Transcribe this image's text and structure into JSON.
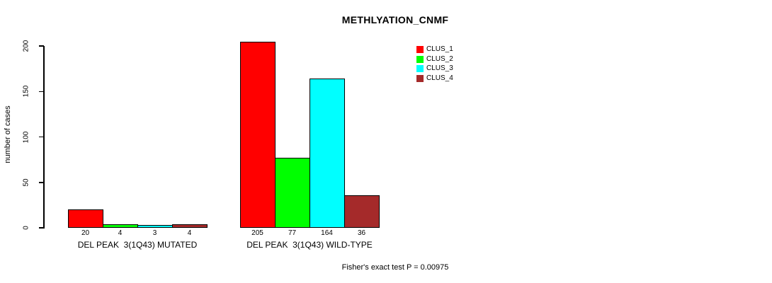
{
  "chart_data": {
    "type": "bar",
    "title": "METHLYATION_CNMF",
    "ylabel": "number of cases",
    "xlabel": "",
    "categories": [
      "DEL PEAK  3(1Q43) MUTATED",
      "DEL PEAK  3(1Q43) WILD-TYPE"
    ],
    "series": [
      {
        "name": "CLUS_1",
        "color": "#ff0000",
        "values": [
          20,
          205
        ]
      },
      {
        "name": "CLUS_2",
        "color": "#00ff00",
        "values": [
          4,
          77
        ]
      },
      {
        "name": "CLUS_3",
        "color": "#00ffff",
        "values": [
          3,
          164
        ]
      },
      {
        "name": "CLUS_4",
        "color": "#a52a2a",
        "values": [
          4,
          36
        ]
      }
    ],
    "yticks": [
      0,
      50,
      100,
      150,
      200
    ],
    "ylim": [
      0,
      213
    ],
    "grid": false,
    "legend_position": "top-right",
    "bar_value_labels": true,
    "annotation": "Fisher's exact test P = 0.00975"
  }
}
